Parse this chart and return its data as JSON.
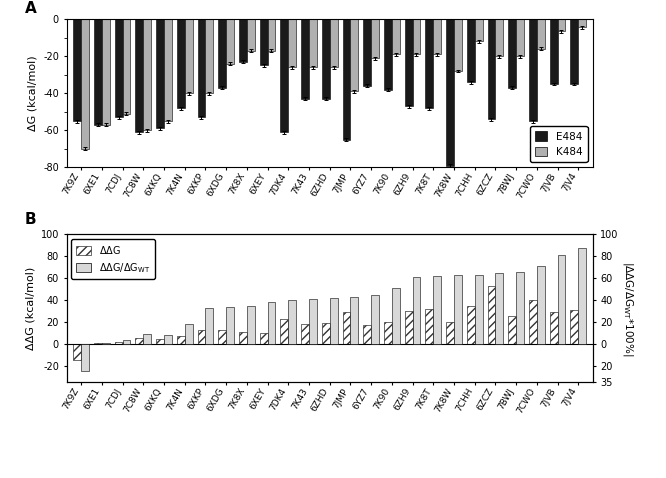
{
  "categories": [
    "7K9Z",
    "6XE1",
    "7CDJ",
    "7C8W",
    "6XKQ",
    "7K4N",
    "6XKP",
    "6XDG",
    "7K8X",
    "6XEY",
    "7DK4",
    "7K43",
    "6ZHD",
    "7JMP",
    "6YZ7",
    "7K90",
    "6ZH9",
    "7K8T",
    "7K8W",
    "7CHH",
    "6ZCZ",
    "7BWJ",
    "7CWO",
    "7JVB",
    "7JV4"
  ],
  "E484": [
    -55.0,
    -57.0,
    -53.0,
    -61.0,
    -59.0,
    -48.0,
    -53.0,
    -37.0,
    -23.0,
    -25.0,
    -61.0,
    -43.0,
    -43.0,
    -65.0,
    -36.0,
    -38.0,
    -47.0,
    -48.0,
    -79.0,
    -34.0,
    -54.0,
    -37.0,
    -55.0,
    -35.0,
    -35.0
  ],
  "K484": [
    -70.0,
    -57.0,
    -51.0,
    -60.0,
    -55.0,
    -40.0,
    -40.0,
    -24.0,
    -17.0,
    -17.0,
    -26.0,
    -26.0,
    -26.0,
    -39.0,
    -21.0,
    -19.0,
    -19.0,
    -19.0,
    -28.0,
    -12.0,
    -20.0,
    -20.0,
    -16.0,
    -6.5,
    -4.5
  ],
  "ddG": [
    -15.0,
    0.5,
    2.0,
    5.0,
    4.5,
    7.0,
    13.0,
    13.0,
    10.5,
    10.0,
    23.0,
    18.5,
    19.5,
    29.0,
    17.0,
    20.0,
    30.0,
    32.0,
    20.0,
    35.0,
    53.0,
    25.0,
    40.0,
    29.0,
    31.0
  ],
  "ratio": [
    -25.0,
    1.0,
    4.0,
    9.0,
    8.0,
    18.0,
    33.0,
    34.0,
    35.0,
    38.0,
    40.0,
    41.0,
    42.0,
    43.0,
    44.5,
    51.0,
    61.0,
    62.0,
    62.5,
    63.0,
    65.0,
    65.5,
    71.0,
    81.0,
    87.0
  ],
  "bar_color_E484": "#1a1a1a",
  "bar_color_K484": "#b0b0b0",
  "panel_A_ylabel": "ΔG (kcal/mol)",
  "panel_B_ylabel_left": "ΔΔG (kcal/mol)",
  "panel_B_ylabel_right": "|ΔΔG/ΔG_WT*100%|"
}
